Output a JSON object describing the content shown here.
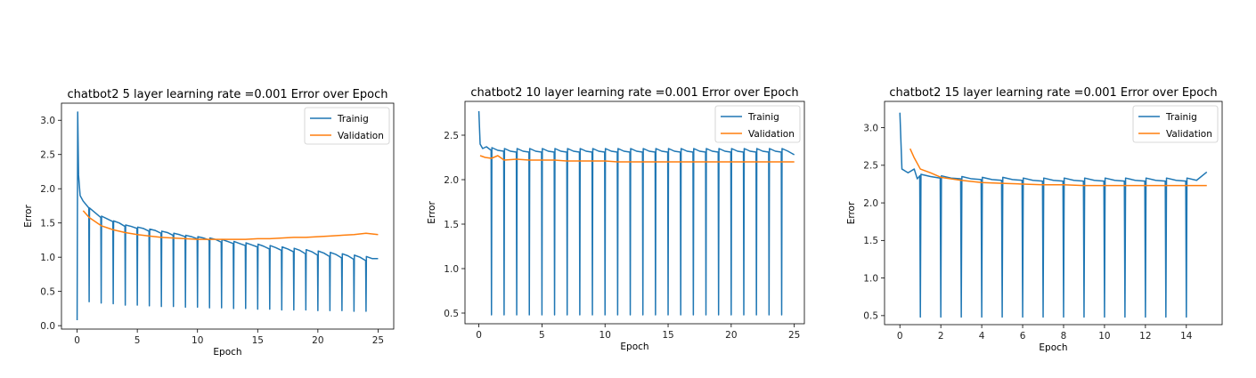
{
  "colors": {
    "training": "#1f77b4",
    "validation": "#ff7f0e"
  },
  "chart_data": [
    {
      "type": "line",
      "title": "chatbot2 5 layer learning rate =0.001 Error over Epoch",
      "xlabel": "Epoch",
      "ylabel": "Error",
      "xlim": [
        -1.3,
        26.3
      ],
      "ylim": [
        -0.05,
        3.25
      ],
      "xticks": [
        0,
        5,
        10,
        15,
        20,
        25
      ],
      "yticks": [
        0.0,
        0.5,
        1.0,
        1.5,
        2.0,
        2.5,
        3.0
      ],
      "legend": "top-right",
      "series": [
        {
          "name": "Trainig",
          "color": "#1f77b4",
          "x": [
            0,
            0.05,
            0.12,
            0.25,
            0.5,
            0.97,
            1.0,
            1.03,
            1.5,
            1.97,
            2.0,
            2.03,
            2.5,
            2.97,
            3.0,
            3.03,
            3.5,
            3.97,
            4.0,
            4.03,
            4.5,
            4.97,
            5.0,
            5.03,
            5.5,
            5.97,
            6.0,
            6.03,
            6.5,
            6.97,
            7.0,
            7.03,
            7.5,
            7.97,
            8.0,
            8.03,
            8.5,
            8.97,
            9.0,
            9.03,
            9.5,
            9.97,
            10.0,
            10.03,
            10.5,
            10.97,
            11.0,
            11.03,
            11.5,
            11.97,
            12.0,
            12.03,
            12.5,
            12.97,
            13.0,
            13.03,
            13.5,
            13.97,
            14.0,
            14.03,
            14.5,
            14.97,
            15.0,
            15.03,
            15.5,
            15.97,
            16.0,
            16.03,
            16.5,
            16.97,
            17.0,
            17.03,
            17.5,
            17.97,
            18.0,
            18.03,
            18.5,
            18.97,
            19.0,
            19.03,
            19.5,
            19.97,
            20.0,
            20.03,
            20.5,
            20.97,
            21.0,
            21.03,
            21.5,
            21.97,
            22.0,
            22.03,
            22.5,
            22.97,
            23.0,
            23.03,
            23.5,
            23.97,
            24.0,
            24.03,
            24.5,
            25.0
          ],
          "y": [
            0.08,
            3.12,
            2.2,
            1.9,
            1.82,
            1.72,
            0.35,
            1.72,
            1.65,
            1.58,
            0.33,
            1.6,
            1.56,
            1.52,
            0.32,
            1.53,
            1.5,
            1.45,
            0.3,
            1.47,
            1.45,
            1.42,
            0.3,
            1.44,
            1.42,
            1.38,
            0.29,
            1.41,
            1.39,
            1.35,
            0.28,
            1.38,
            1.36,
            1.32,
            0.28,
            1.35,
            1.33,
            1.3,
            0.27,
            1.32,
            1.3,
            1.27,
            0.27,
            1.3,
            1.28,
            1.25,
            0.26,
            1.28,
            1.26,
            1.22,
            0.26,
            1.26,
            1.23,
            1.2,
            0.25,
            1.23,
            1.2,
            1.17,
            0.25,
            1.21,
            1.18,
            1.15,
            0.24,
            1.19,
            1.16,
            1.12,
            0.24,
            1.17,
            1.14,
            1.1,
            0.23,
            1.15,
            1.12,
            1.08,
            0.23,
            1.13,
            1.1,
            1.05,
            0.23,
            1.11,
            1.08,
            1.03,
            0.22,
            1.09,
            1.06,
            1.01,
            0.22,
            1.07,
            1.04,
            0.99,
            0.22,
            1.05,
            1.02,
            0.97,
            0.21,
            1.03,
            1.0,
            0.95,
            0.21,
            1.01,
            0.98,
            0.98
          ]
        },
        {
          "name": "Validation",
          "color": "#ff7f0e",
          "x": [
            0.5,
            1,
            2,
            3,
            4,
            5,
            6,
            7,
            8,
            9,
            10,
            11,
            12,
            13,
            14,
            15,
            16,
            17,
            18,
            19,
            20,
            21,
            22,
            23,
            24,
            25
          ],
          "y": [
            1.68,
            1.58,
            1.46,
            1.4,
            1.36,
            1.33,
            1.31,
            1.29,
            1.28,
            1.27,
            1.26,
            1.26,
            1.26,
            1.26,
            1.26,
            1.27,
            1.27,
            1.28,
            1.29,
            1.29,
            1.3,
            1.31,
            1.32,
            1.33,
            1.35,
            1.33
          ]
        }
      ]
    },
    {
      "type": "line",
      "title": "chatbot2 10 layer learning rate =0.001 Error over Epoch",
      "xlabel": "Epoch",
      "ylabel": "Error",
      "xlim": [
        -1.1,
        25.8
      ],
      "ylim": [
        0.38,
        2.88
      ],
      "xticks": [
        0,
        5,
        10,
        15,
        20,
        25
      ],
      "yticks": [
        0.5,
        1.0,
        1.5,
        2.0,
        2.5
      ],
      "legend": "top-right",
      "series": [
        {
          "name": "Trainig",
          "color": "#1f77b4",
          "x": [
            0,
            0.1,
            0.3,
            0.6,
            0.97,
            1.0,
            1.03,
            1.5,
            1.97,
            2.0,
            2.03,
            2.5,
            2.97,
            3.0,
            3.03,
            3.5,
            3.97,
            4.0,
            4.03,
            4.5,
            4.97,
            5.0,
            5.03,
            5.5,
            5.97,
            6.0,
            6.03,
            6.5,
            6.97,
            7.0,
            7.03,
            7.5,
            7.97,
            8.0,
            8.03,
            8.5,
            8.97,
            9.0,
            9.03,
            9.5,
            9.97,
            10.0,
            10.03,
            10.5,
            10.97,
            11.0,
            11.03,
            11.5,
            11.97,
            12.0,
            12.03,
            12.5,
            12.97,
            13.0,
            13.03,
            13.5,
            13.97,
            14.0,
            14.03,
            14.5,
            14.97,
            15.0,
            15.03,
            15.5,
            15.97,
            16.0,
            16.03,
            16.5,
            16.97,
            17.0,
            17.03,
            17.5,
            17.97,
            18.0,
            18.03,
            18.5,
            18.97,
            19.0,
            19.03,
            19.5,
            19.97,
            20.0,
            20.03,
            20.5,
            20.97,
            21.0,
            21.03,
            21.5,
            21.97,
            22.0,
            22.03,
            22.5,
            22.97,
            23.0,
            23.03,
            23.5,
            23.97,
            24.0,
            24.03,
            24.5,
            25.0
          ],
          "y": [
            2.77,
            2.4,
            2.35,
            2.37,
            2.33,
            0.48,
            2.36,
            2.33,
            2.32,
            0.48,
            2.35,
            2.32,
            2.31,
            0.48,
            2.35,
            2.32,
            2.31,
            0.48,
            2.35,
            2.32,
            2.31,
            0.48,
            2.35,
            2.32,
            2.31,
            0.48,
            2.35,
            2.32,
            2.31,
            0.48,
            2.35,
            2.32,
            2.31,
            0.48,
            2.35,
            2.32,
            2.31,
            0.48,
            2.35,
            2.32,
            2.31,
            0.48,
            2.35,
            2.32,
            2.31,
            0.48,
            2.35,
            2.32,
            2.31,
            0.48,
            2.35,
            2.32,
            2.31,
            0.48,
            2.35,
            2.32,
            2.31,
            0.48,
            2.35,
            2.32,
            2.31,
            0.48,
            2.35,
            2.32,
            2.31,
            0.48,
            2.35,
            2.32,
            2.31,
            0.48,
            2.35,
            2.32,
            2.31,
            0.48,
            2.35,
            2.32,
            2.31,
            0.48,
            2.35,
            2.32,
            2.31,
            0.48,
            2.35,
            2.32,
            2.31,
            0.48,
            2.35,
            2.32,
            2.31,
            0.48,
            2.35,
            2.32,
            2.31,
            0.48,
            2.35,
            2.32,
            2.31,
            0.48,
            2.35,
            2.32,
            2.28
          ]
        },
        {
          "name": "Validation",
          "color": "#ff7f0e",
          "x": [
            0.1,
            0.5,
            1,
            1.5,
            2,
            3,
            4,
            5,
            6,
            7,
            8,
            9,
            10,
            11,
            12,
            13,
            14,
            15,
            16,
            17,
            18,
            19,
            20,
            21,
            22,
            23,
            24,
            25
          ],
          "y": [
            2.27,
            2.25,
            2.24,
            2.27,
            2.22,
            2.23,
            2.22,
            2.22,
            2.22,
            2.21,
            2.21,
            2.21,
            2.21,
            2.2,
            2.2,
            2.2,
            2.2,
            2.2,
            2.2,
            2.2,
            2.2,
            2.2,
            2.2,
            2.2,
            2.2,
            2.2,
            2.2,
            2.2
          ]
        }
      ]
    },
    {
      "type": "line",
      "title": "chatbot2 15 layer learning rate =0.001 Error over Epoch",
      "xlabel": "Epoch",
      "ylabel": "Error",
      "xlim": [
        -0.75,
        15.75
      ],
      "ylim": [
        0.38,
        3.35
      ],
      "xticks": [
        0,
        2,
        4,
        6,
        8,
        10,
        12,
        14
      ],
      "yticks": [
        0.5,
        1.0,
        1.5,
        2.0,
        2.5,
        3.0
      ],
      "legend": "top-right",
      "series": [
        {
          "name": "Trainig",
          "color": "#1f77b4",
          "x": [
            0,
            0.1,
            0.4,
            0.7,
            0.85,
            0.97,
            1.0,
            1.03,
            1.5,
            1.97,
            2.0,
            2.03,
            2.5,
            2.97,
            3.0,
            3.03,
            3.5,
            3.97,
            4.0,
            4.03,
            4.5,
            4.97,
            5.0,
            5.03,
            5.5,
            5.97,
            6.0,
            6.03,
            6.5,
            6.97,
            7.0,
            7.03,
            7.5,
            7.97,
            8.0,
            8.03,
            8.5,
            8.97,
            9.0,
            9.03,
            9.5,
            9.97,
            10.0,
            10.03,
            10.5,
            10.97,
            11.0,
            11.03,
            11.5,
            11.97,
            12.0,
            12.03,
            12.5,
            12.97,
            13.0,
            13.03,
            13.5,
            13.97,
            14.0,
            14.03,
            14.5,
            15.0
          ],
          "y": [
            3.2,
            2.45,
            2.4,
            2.45,
            2.32,
            2.36,
            0.48,
            2.38,
            2.35,
            2.33,
            0.48,
            2.36,
            2.33,
            2.32,
            0.48,
            2.35,
            2.32,
            2.31,
            0.48,
            2.34,
            2.31,
            2.3,
            0.48,
            2.34,
            2.31,
            2.3,
            0.48,
            2.33,
            2.3,
            2.29,
            0.48,
            2.33,
            2.3,
            2.29,
            0.48,
            2.33,
            2.3,
            2.29,
            0.48,
            2.33,
            2.3,
            2.29,
            0.48,
            2.33,
            2.3,
            2.29,
            0.48,
            2.33,
            2.3,
            2.29,
            0.48,
            2.33,
            2.3,
            2.29,
            0.48,
            2.33,
            2.3,
            2.29,
            0.48,
            2.33,
            2.3,
            2.41
          ]
        },
        {
          "name": "Validation",
          "color": "#ff7f0e",
          "x": [
            0.5,
            0.7,
            1,
            1.5,
            2,
            3,
            4,
            5,
            6,
            7,
            8,
            9,
            10,
            11,
            12,
            13,
            14,
            15
          ],
          "y": [
            2.72,
            2.6,
            2.45,
            2.4,
            2.34,
            2.3,
            2.27,
            2.26,
            2.25,
            2.24,
            2.24,
            2.23,
            2.23,
            2.23,
            2.23,
            2.23,
            2.23,
            2.23
          ]
        }
      ]
    }
  ]
}
